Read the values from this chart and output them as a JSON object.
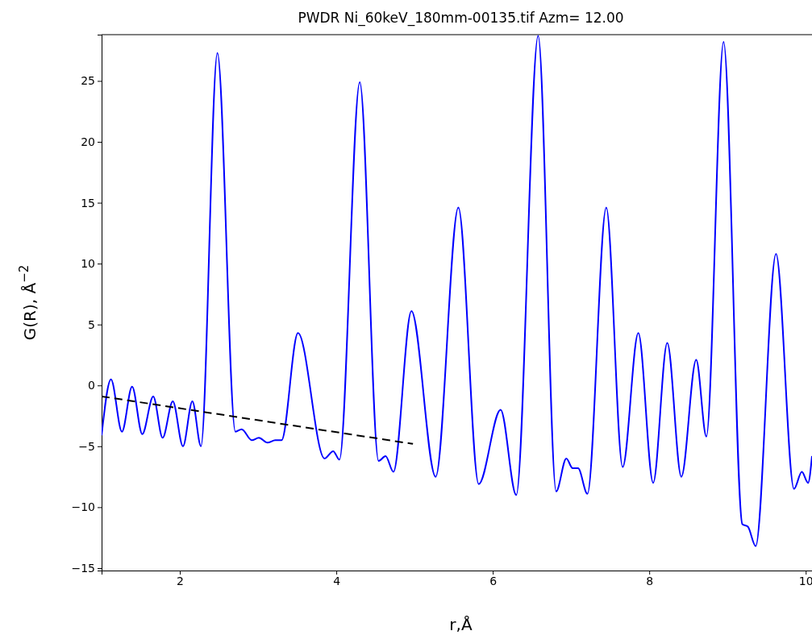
{
  "chart_data": {
    "type": "line",
    "title": "PWDR Ni_60keV_180mm-00135.tif Azm= 12.00",
    "xlabel": "r,Å",
    "ylabel": "G(R), Å$^{−2}$",
    "xlim": [
      1.0,
      10.08
    ],
    "ylim": [
      -15.2,
      28.8
    ],
    "xticks": [
      2,
      4,
      6,
      8,
      10
    ],
    "yticks": [
      {
        "value": -15,
        "label": "−15"
      },
      {
        "value": -10,
        "label": "−10"
      },
      {
        "value": -5,
        "label": "−5"
      },
      0,
      5,
      10,
      15,
      20,
      25
    ],
    "grid": false,
    "series": [
      {
        "color": "#0000ff",
        "line_style": "solid",
        "x": [
          1.0,
          1.12,
          1.26,
          1.39,
          1.52,
          1.66,
          1.78,
          1.91,
          2.04,
          2.16,
          2.27,
          2.48,
          2.71,
          2.79,
          2.92,
          3.01,
          3.12,
          3.22,
          3.3,
          3.51,
          3.85,
          3.96,
          4.04,
          4.3,
          4.54,
          4.63,
          4.73,
          4.96,
          5.27,
          5.56,
          5.82,
          6.1,
          6.3,
          6.58,
          6.81,
          6.94,
          7.02,
          7.09,
          7.21,
          7.45,
          7.66,
          7.86,
          8.05,
          8.23,
          8.41,
          8.6,
          8.73,
          8.95,
          9.19,
          9.26,
          9.36,
          9.62,
          9.85,
          9.95,
          10.03,
          10.08
        ],
        "values": [
          -4.1,
          0.5,
          -3.8,
          -0.1,
          -4.0,
          -0.9,
          -4.3,
          -1.3,
          -5.0,
          -1.3,
          -5.0,
          27.3,
          -3.8,
          -3.6,
          -4.5,
          -4.3,
          -4.7,
          -4.5,
          -4.5,
          4.3,
          -6.0,
          -5.4,
          -6.1,
          24.9,
          -6.2,
          -5.8,
          -7.1,
          6.1,
          -7.5,
          14.6,
          -8.1,
          -2.0,
          -9.0,
          28.7,
          -8.7,
          -6.0,
          -6.8,
          -6.8,
          -8.9,
          14.6,
          -6.7,
          4.3,
          -8.0,
          3.5,
          -7.5,
          2.1,
          -4.2,
          28.2,
          -11.4,
          -11.6,
          -13.2,
          10.8,
          -8.5,
          -7.1,
          -8.0,
          -5.8
        ]
      },
      {
        "color": "#000000",
        "line_style": "dashed",
        "x": [
          1.0,
          4.98
        ],
        "values": [
          -0.9,
          -4.8
        ]
      }
    ]
  }
}
